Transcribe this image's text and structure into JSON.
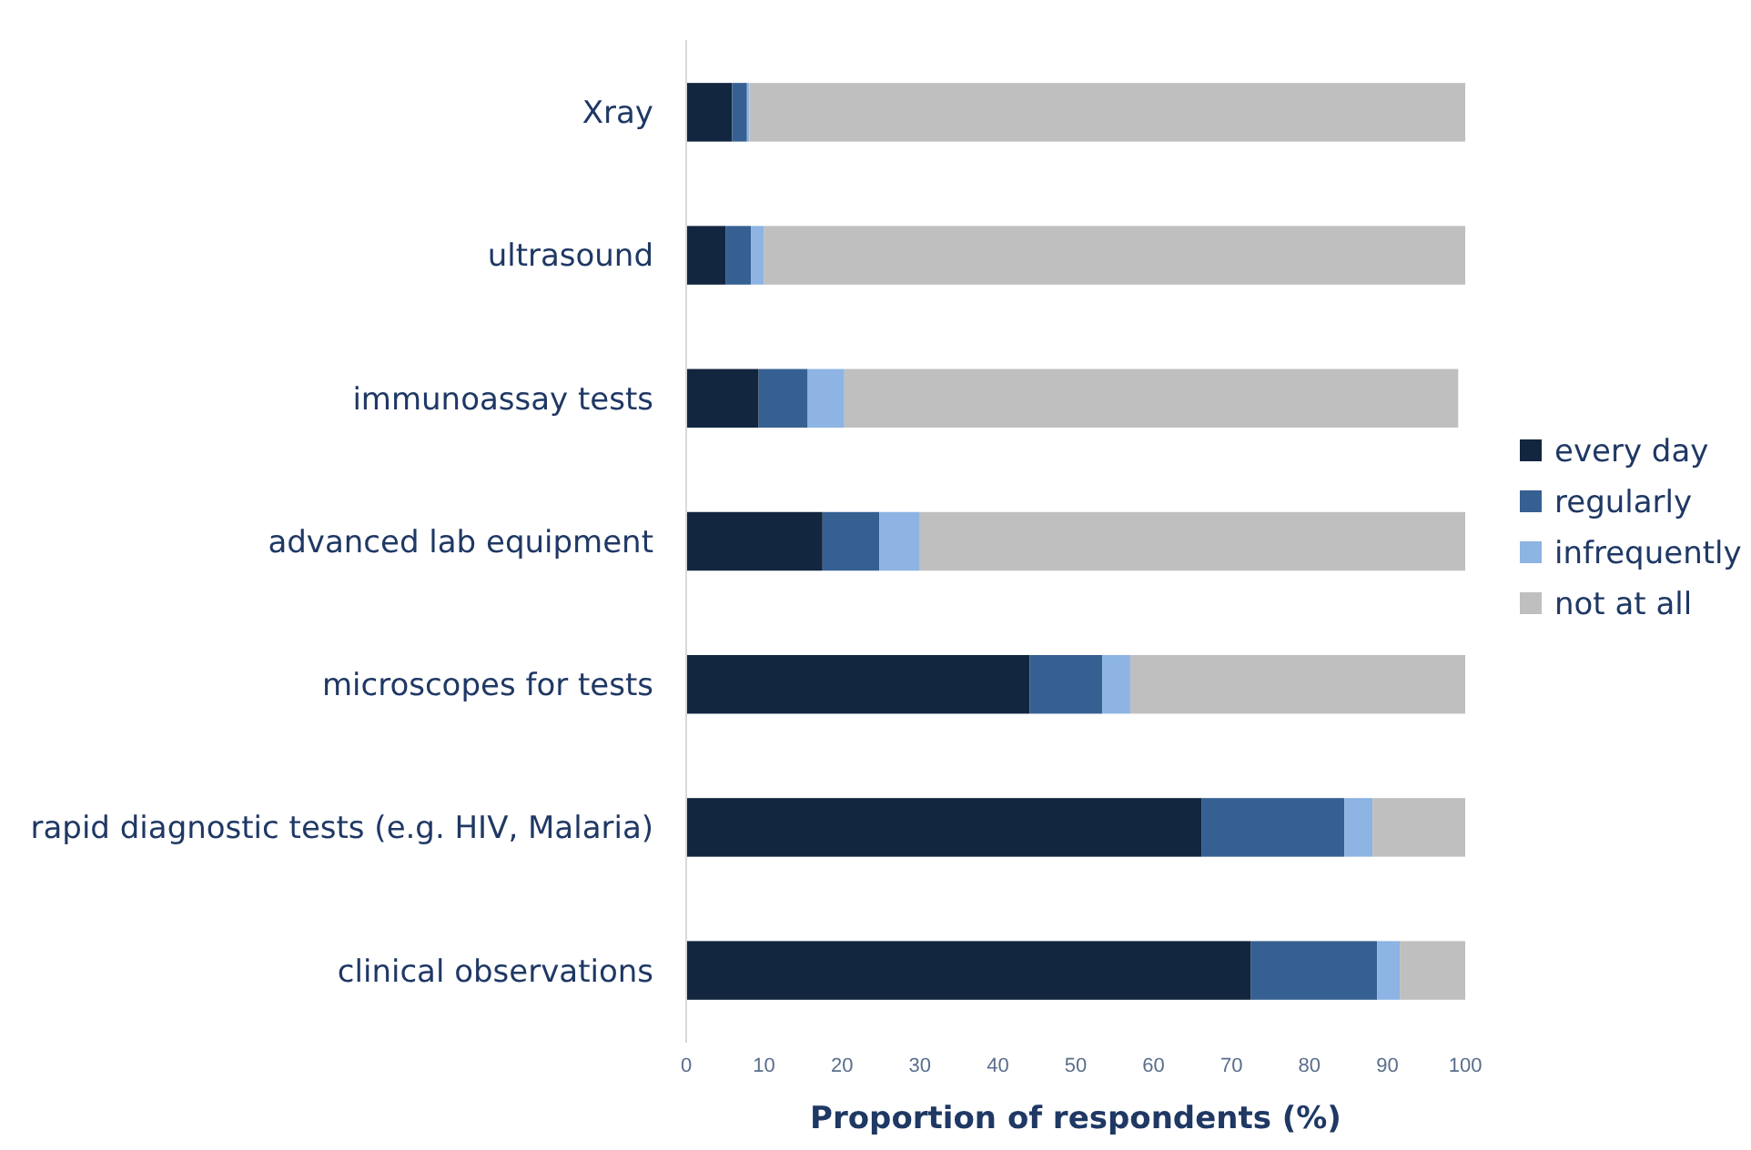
{
  "chart_data": {
    "type": "bar",
    "orientation": "horizontal",
    "stacked": true,
    "categories": [
      "Xray",
      "ultrasound",
      "immunoassay tests",
      "advanced lab equipment",
      "microscopes for tests",
      "rapid diagnostic tests (e.g. HIV, Malaria)",
      "clinical observations"
    ],
    "series": [
      {
        "name": "every day",
        "color": "#12263f",
        "values": [
          5.9,
          5.1,
          9.3,
          17.5,
          44.1,
          66.2,
          72.5
        ]
      },
      {
        "name": "regularly",
        "color": "#366092",
        "values": [
          1.9,
          3.2,
          6.3,
          7.3,
          9.3,
          18.3,
          16.2
        ]
      },
      {
        "name": "infrequently",
        "color": "#8db4e2",
        "values": [
          0.3,
          1.7,
          4.7,
          5.2,
          3.6,
          3.6,
          2.9
        ]
      },
      {
        "name": "not at all",
        "color": "#bfbfbf",
        "values": [
          91.9,
          90,
          78.8,
          70,
          43,
          11.9,
          8.4
        ]
      }
    ],
    "xlabel": "Proportion of respondents (%)",
    "xlim": [
      0,
      100
    ],
    "xticks": [
      0,
      10,
      20,
      30,
      40,
      50,
      60,
      70,
      80,
      90,
      100
    ],
    "grid": false,
    "legend": "right"
  }
}
